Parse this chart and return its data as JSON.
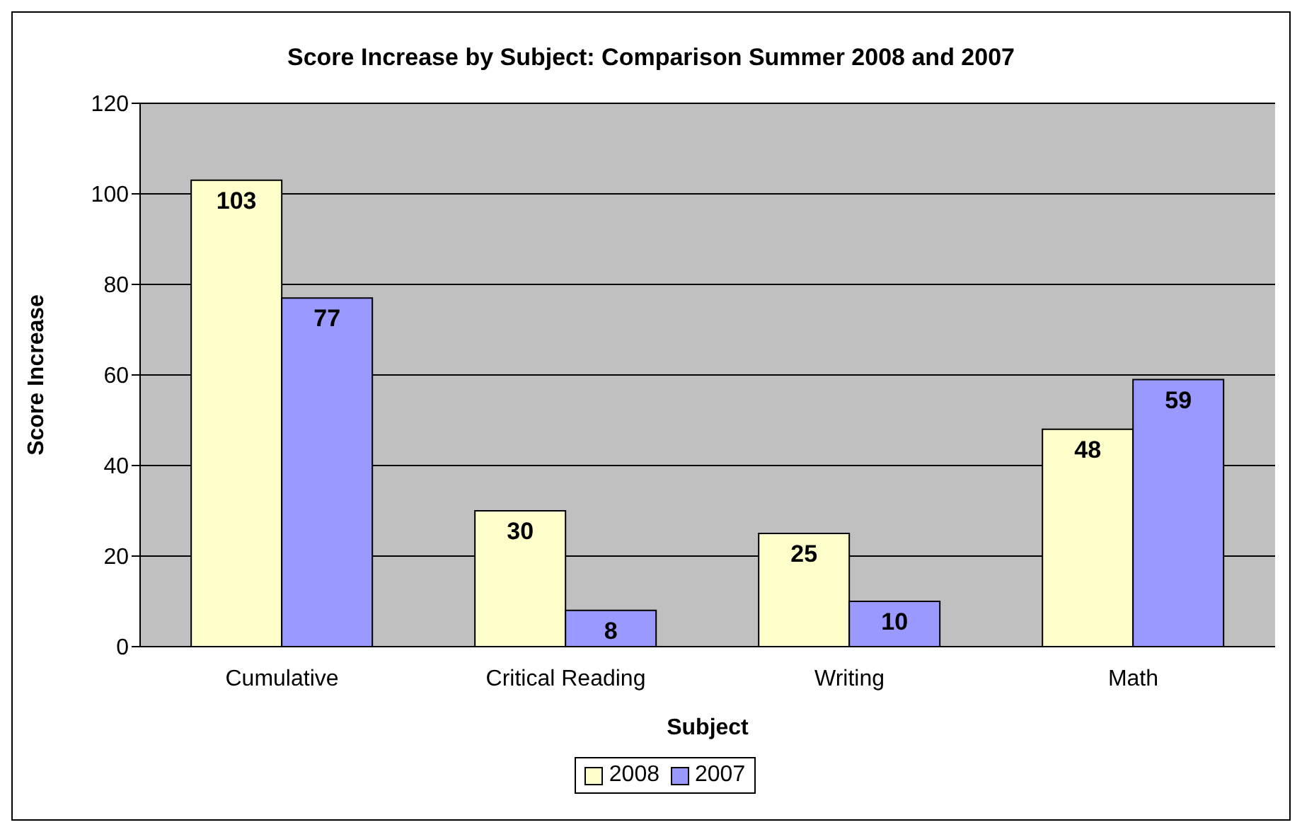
{
  "chart_data": {
    "type": "bar",
    "title": "Score Increase by Subject: Comparison Summer 2008 and 2007",
    "xlabel": "Subject",
    "ylabel": "Score Increase",
    "categories": [
      "Cumulative",
      "Critical Reading",
      "Writing",
      "Math"
    ],
    "series": [
      {
        "name": "2008",
        "color": "#ffffcc",
        "values": [
          103,
          30,
          25,
          48
        ]
      },
      {
        "name": "2007",
        "color": "#9999ff",
        "values": [
          77,
          8,
          10,
          59
        ]
      }
    ],
    "ylim": [
      0,
      120
    ],
    "yticks": [
      0,
      20,
      40,
      60,
      80,
      100,
      120
    ],
    "grid": "y",
    "legend": "bottom",
    "data_labels": true
  }
}
